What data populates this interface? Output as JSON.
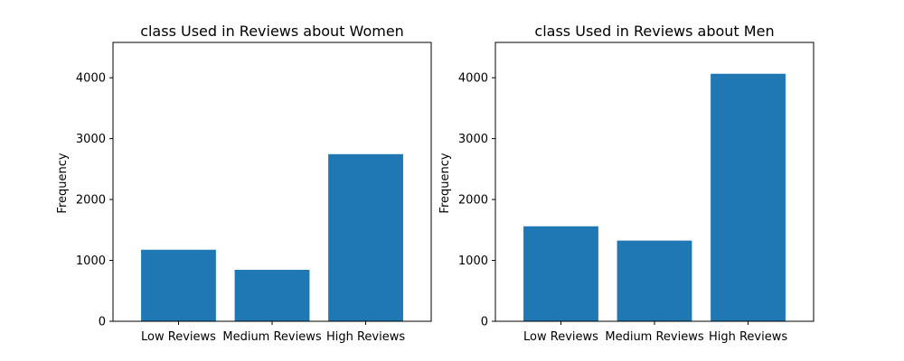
{
  "chart_data": [
    {
      "type": "bar",
      "title": "class Used in Reviews about Women",
      "xlabel": "",
      "ylabel": "Frequency",
      "categories": [
        "Low Reviews",
        "Medium Reviews",
        "High Reviews"
      ],
      "values": [
        1175,
        845,
        2745
      ],
      "ylim": [
        0,
        4580
      ],
      "yticks": [
        0,
        1000,
        2000,
        3000,
        4000
      ],
      "color": "#1f77b4",
      "grid": false
    },
    {
      "type": "bar",
      "title": "class Used in Reviews about Men",
      "xlabel": "",
      "ylabel": "Frequency",
      "categories": [
        "Low Reviews",
        "Medium Reviews",
        "High Reviews"
      ],
      "values": [
        1560,
        1325,
        4065
      ],
      "ylim": [
        0,
        4580
      ],
      "yticks": [
        0,
        1000,
        2000,
        3000,
        4000
      ],
      "color": "#1f77b4",
      "grid": false
    }
  ]
}
